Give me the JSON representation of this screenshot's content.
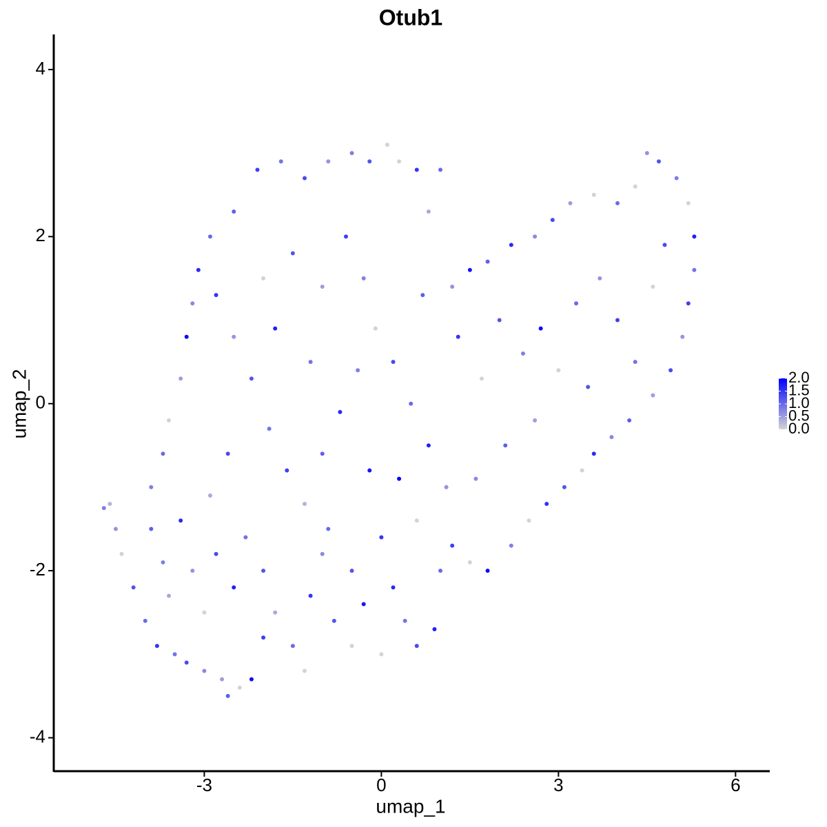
{
  "chart_data": {
    "type": "scatter",
    "title": "Otub1",
    "x_label": "umap_1",
    "y_label": "umap_2",
    "xlim": [
      -5.55,
      6.58
    ],
    "ylim": [
      -4.4,
      4.42
    ],
    "xticks": [
      -3,
      0,
      3,
      6
    ],
    "yticks": [
      -4,
      -2,
      0,
      2,
      4
    ],
    "x": [
      -4.7,
      -4.6,
      -4.5,
      -4.4,
      -4.2,
      -4.0,
      -3.8,
      -3.6,
      -3.5,
      -3.3,
      -3.0,
      -2.7,
      -2.6,
      -2.4,
      -2.2,
      -2.0,
      -3.9,
      -3.7,
      -3.4,
      -3.2,
      -3.0,
      -2.8,
      -2.5,
      -2.3,
      -2.0,
      -1.8,
      -1.5,
      -1.3,
      -1.2,
      -1.0,
      -0.8,
      -0.5,
      -0.3,
      0,
      0.2,
      0.4,
      0.6,
      0.9,
      1.0,
      1.2,
      1.5,
      1.8,
      2.2,
      2.5,
      2.8,
      3.1,
      3.4,
      3.6,
      3.9,
      4.2,
      4.6,
      4.9,
      5.1,
      5.2,
      5.3,
      5.3,
      5.2,
      5.0,
      4.7,
      4.5,
      4.3,
      4.0,
      3.6,
      3.2,
      2.9,
      2.6,
      2.2,
      1.8,
      1.5,
      1.2,
      1.0,
      0.8,
      0.6,
      0.3,
      0.1,
      -0.2,
      -0.5,
      -0.9,
      -1.3,
      -1.7,
      -2.1,
      -2.5,
      -2.9,
      -3.1,
      -3.2,
      -3.3,
      -3.4,
      -3.6,
      -3.7,
      -3.9,
      -2.8,
      -2.5,
      -2.2,
      -1.9,
      -1.6,
      -1.3,
      -1.0,
      -0.7,
      -0.4,
      -0.1,
      0.2,
      0.5,
      0.8,
      1.1,
      0.3,
      -0.2,
      -1.5,
      -1.0,
      -0.6,
      -2.0,
      -1.8,
      -1.2,
      -0.9,
      -2.6,
      -2.9,
      1.3,
      1.7,
      2.0,
      2.4,
      2.7,
      3.0,
      3.3,
      3.7,
      4.0,
      4.3,
      4.6,
      4.8,
      2.1,
      2.6,
      3.5,
      1.6,
      0.7,
      -0.3,
      0,
      0.6,
      -0.5
    ],
    "values": [
      -1.25,
      -1.2,
      -1.5,
      -1.8,
      -2.2,
      -2.6,
      -2.9,
      -2.3,
      -3.0,
      -3.1,
      -3.2,
      -3.3,
      -3.5,
      -3.4,
      -3.3,
      -2.8,
      -1.5,
      -1.9,
      -1.4,
      -2.0,
      -2.5,
      -1.8,
      -2.2,
      -1.6,
      -2.0,
      -2.5,
      -2.9,
      -3.2,
      -2.3,
      -1.8,
      -2.6,
      -2.9,
      -2.4,
      -3.0,
      -2.2,
      -2.6,
      -2.9,
      -2.7,
      -2.0,
      -1.7,
      -1.9,
      -2.0,
      -1.7,
      -1.4,
      -1.2,
      -1.0,
      -0.8,
      -0.6,
      -0.4,
      -0.2,
      0.1,
      0.4,
      0.8,
      1.2,
      1.6,
      2.0,
      2.4,
      2.7,
      2.9,
      3.0,
      2.6,
      2.4,
      2.5,
      2.4,
      2.2,
      2.0,
      1.9,
      1.7,
      1.6,
      1.4,
      2.8,
      2.3,
      2.8,
      2.9,
      3.1,
      2.9,
      3.0,
      2.9,
      2.7,
      2.9,
      2.8,
      2.3,
      2.0,
      1.6,
      1.2,
      0.8,
      0.3,
      -0.2,
      -0.6,
      -1.0,
      1.3,
      0.8,
      0.3,
      -0.3,
      -0.8,
      -1.2,
      -0.6,
      -0.1,
      0.4,
      0.9,
      0.5,
      0,
      -0.5,
      -1.0,
      -0.9,
      -0.8,
      1.8,
      1.4,
      2.0,
      1.5,
      0.9,
      0.5,
      -1.5,
      -0.6,
      -1.1,
      0.8,
      0.3,
      1.0,
      0.6,
      0.9,
      0.4,
      1.2,
      1.5,
      1.0,
      0.5,
      1.4,
      1.9,
      -0.5,
      -0.2,
      0.2,
      -0.9,
      1.3,
      1.5,
      -1.6,
      -1.4,
      -2.0
    ],
    "expression": [
      0.8,
      0.3,
      0.6,
      0,
      1.2,
      1.0,
      1.5,
      0.4,
      0.9,
      1.3,
      0.7,
      0.5,
      1.1,
      0,
      1.9,
      1.4,
      1.1,
      0.8,
      1.6,
      0.6,
      0,
      1.3,
      1.7,
      0.9,
      1.2,
      0.4,
      1.0,
      0,
      1.5,
      0.7,
      1.2,
      0,
      1.8,
      0,
      1.6,
      0.9,
      1.3,
      1.7,
      1.0,
      1.4,
      0,
      1.9,
      0.8,
      0,
      1.5,
      1.2,
      0,
      1.6,
      0.7,
      1.1,
      0.5,
      1.3,
      0.6,
      1.4,
      0.9,
      1.7,
      0,
      0.8,
      1.2,
      0.6,
      0,
      1.0,
      0,
      0.5,
      1.3,
      0.7,
      1.6,
      1.1,
      1.8,
      0.6,
      1.0,
      0.4,
      1.5,
      0,
      0,
      1.2,
      0.8,
      0.6,
      1.3,
      0.9,
      1.4,
      1.1,
      1.0,
      1.6,
      0.7,
      1.9,
      0.5,
      0,
      1.0,
      0.8,
      1.5,
      0.6,
      1.2,
      0.9,
      1.4,
      0.3,
      1.1,
      1.6,
      0.8,
      0,
      1.3,
      1.0,
      1.7,
      0.6,
      2.0,
      1.8,
      1.2,
      0.5,
      1.4,
      0,
      1.7,
      0.9,
      1.0,
      1.3,
      0.4,
      1.5,
      0,
      1.2,
      0.8,
      1.9,
      0,
      1.0,
      0.6,
      1.4,
      0.9,
      0,
      1.3,
      1.1,
      0.5,
      1.2,
      0.7,
      1.1,
      0.8,
      1.5,
      0,
      1.2
    ],
    "colorbar": {
      "low_color": "#d3d3d3",
      "high_color": "#0000ff",
      "lim": [
        0,
        2
      ],
      "ticks": [
        {
          "value": 0,
          "label": "0.0"
        },
        {
          "value": 0.5,
          "label": "0.5"
        },
        {
          "value": 1,
          "label": "1.0"
        },
        {
          "value": 1.5,
          "label": "1.5"
        },
        {
          "value": 2,
          "label": "2.0"
        }
      ]
    }
  }
}
